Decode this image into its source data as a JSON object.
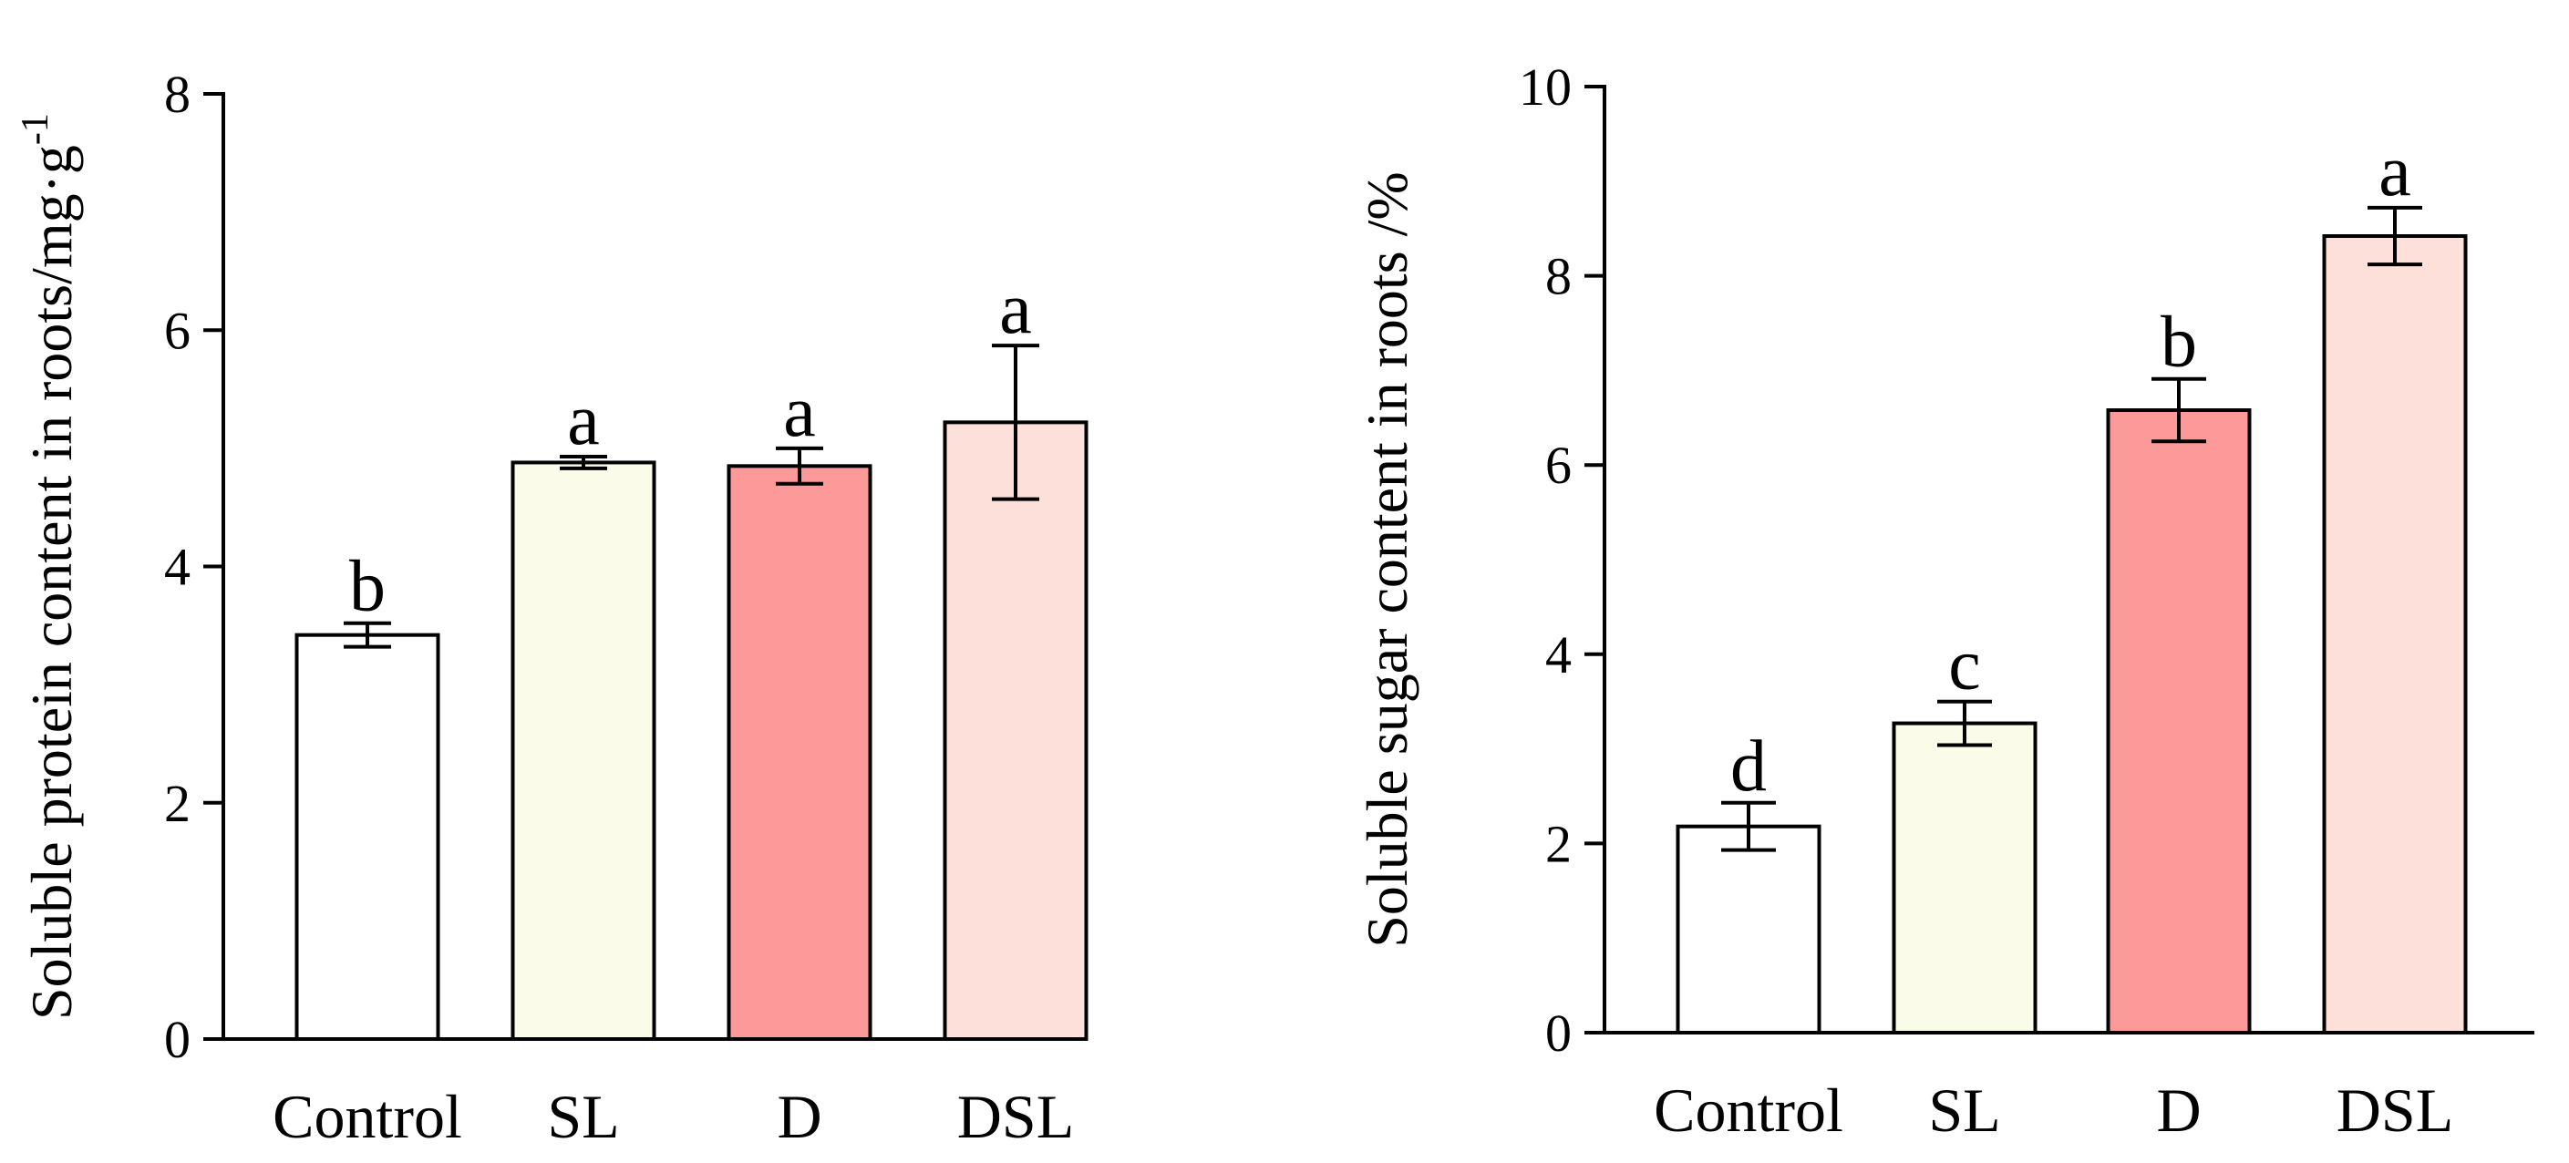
{
  "chart_data": [
    {
      "type": "bar",
      "title": "",
      "xlabel": "",
      "ylabel": "Soluble protein content in roots/mg·g",
      "ylabel_superscript": "-1",
      "categories": [
        "Control",
        "SL",
        "D",
        "DSL"
      ],
      "values": [
        3.42,
        4.88,
        4.85,
        5.22
      ],
      "errors": [
        0.1,
        0.05,
        0.15,
        0.65
      ],
      "significance": [
        "b",
        "a",
        "a",
        "a"
      ],
      "colors": [
        "#ffffff",
        "#fbfbe9",
        "#fc9a99",
        "#fde0da"
      ],
      "ylim": [
        0,
        8
      ],
      "yticks": [
        0,
        2,
        4,
        6,
        8
      ],
      "grid": false,
      "legend": "none"
    },
    {
      "type": "bar",
      "title": "",
      "xlabel": "",
      "ylabel": "Soluble sugar content in roots /%",
      "categories": [
        "Control",
        "SL",
        "D",
        "DSL"
      ],
      "values": [
        2.18,
        3.27,
        6.58,
        8.42
      ],
      "errors": [
        0.25,
        0.23,
        0.33,
        0.3
      ],
      "significance": [
        "d",
        "c",
        "b",
        "a"
      ],
      "colors": [
        "#ffffff",
        "#fbfbe9",
        "#fc9a99",
        "#fde0da"
      ],
      "ylim": [
        0,
        10
      ],
      "yticks": [
        0,
        2,
        4,
        6,
        8,
        10
      ],
      "grid": false,
      "legend": "none"
    }
  ]
}
